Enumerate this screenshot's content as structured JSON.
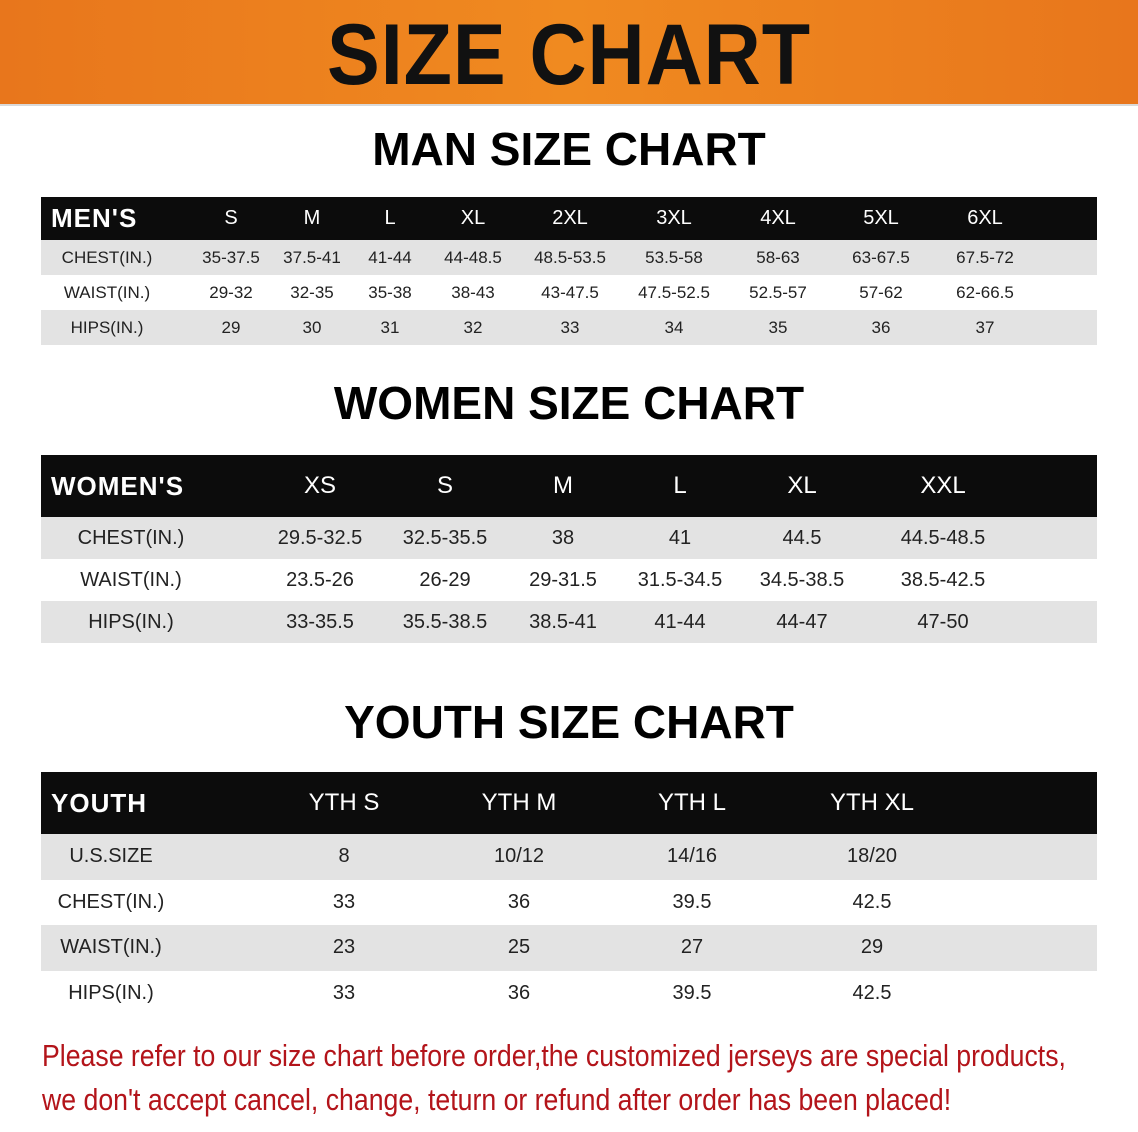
{
  "banner_title": "SIZE CHART",
  "men": {
    "title": "MAN SIZE CHART",
    "header": [
      "MEN'S",
      "S",
      "M",
      "L",
      "XL",
      "2XL",
      "3XL",
      "4XL",
      "5XL",
      "6XL"
    ],
    "rows": [
      [
        "CHEST(IN.)",
        "35-37.5",
        "37.5-41",
        "41-44",
        "44-48.5",
        "48.5-53.5",
        "53.5-58",
        "58-63",
        "63-67.5",
        "67.5-72"
      ],
      [
        "WAIST(IN.)",
        "29-32",
        "32-35",
        "35-38",
        "38-43",
        "43-47.5",
        "47.5-52.5",
        "52.5-57",
        "57-62",
        "62-66.5"
      ],
      [
        "HIPS(IN.)",
        "29",
        "30",
        "31",
        "32",
        "33",
        "34",
        "35",
        "36",
        "37"
      ]
    ]
  },
  "women": {
    "title": "WOMEN SIZE CHART",
    "header": [
      "WOMEN'S",
      "XS",
      "S",
      "M",
      "L",
      "XL",
      "XXL"
    ],
    "rows": [
      [
        "CHEST(IN.)",
        "29.5-32.5",
        "32.5-35.5",
        "38",
        "41",
        "44.5",
        "44.5-48.5"
      ],
      [
        "WAIST(IN.)",
        "23.5-26",
        "26-29",
        "29-31.5",
        "31.5-34.5",
        "34.5-38.5",
        "38.5-42.5"
      ],
      [
        "HIPS(IN.)",
        "33-35.5",
        "35.5-38.5",
        "38.5-41",
        "41-44",
        "44-47",
        "47-50"
      ]
    ]
  },
  "youth": {
    "title": "YOUTH SIZE CHART",
    "header": [
      "YOUTH",
      "YTH S",
      "YTH M",
      "YTH L",
      "YTH XL"
    ],
    "rows": [
      [
        "U.S.SIZE",
        "8",
        "10/12",
        "14/16",
        "18/20"
      ],
      [
        "CHEST(IN.)",
        "33",
        "36",
        "39.5",
        "42.5"
      ],
      [
        "WAIST(IN.)",
        "23",
        "25",
        "27",
        "29"
      ],
      [
        "HIPS(IN.)",
        "33",
        "36",
        "39.5",
        "42.5"
      ]
    ]
  },
  "notice": {
    "line1": "Please refer to our size chart before order,the customized jerseys are special products,",
    "line2": "we don't accept cancel, change, teturn or refund after order has been placed!"
  },
  "colors": {
    "banner": "#ef8420",
    "header_row": "#0c0c0c",
    "stripe": "#e3e3e3",
    "notice": "#b3141a"
  }
}
